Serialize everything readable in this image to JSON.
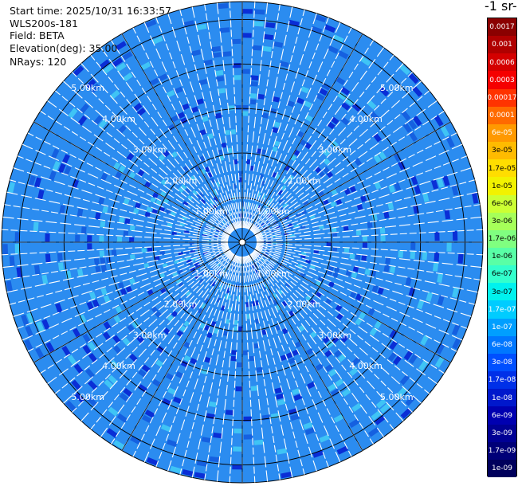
{
  "info": {
    "start_time": "Start time: 2025/10/31 16:33:57",
    "instrument": "WLS200s-181",
    "field": "Field: BETA",
    "elevation": "Elevation(deg): 35.00",
    "nrays": "NRays: 120"
  },
  "colorbar": {
    "title": "-1 sr-",
    "labels": [
      "0.0017",
      "0.001",
      "0.0006",
      "0.0003",
      "0.00017",
      "0.0001",
      "6e-05",
      "3e-05",
      "1.7e-05",
      "1e-05",
      "6e-06",
      "3e-06",
      "1.7e-06",
      "1e-06",
      "6e-07",
      "3e-07",
      "1.7e-07",
      "1e-07",
      "6e-08",
      "3e-08",
      "1.7e-08",
      "1e-08",
      "6e-09",
      "3e-09",
      "1.7e-09",
      "1e-09"
    ],
    "colors": [
      "#8b0000",
      "#b00000",
      "#d40000",
      "#f50000",
      "#ff3300",
      "#ff6a00",
      "#ff9900",
      "#ffbb00",
      "#ffdd00",
      "#f2f200",
      "#ccff33",
      "#a6ff59",
      "#80ff80",
      "#59ffa6",
      "#33ffcc",
      "#00f2ee",
      "#00ccff",
      "#009fff",
      "#0077ff",
      "#004fff",
      "#0030e8",
      "#0018cc",
      "#0000b0",
      "#000094",
      "#000078",
      "#00005c"
    ]
  },
  "chart_data": {
    "type": "heatmap",
    "subtype": "polar-ppi",
    "nrays": 120,
    "elevation_deg": 35.0,
    "range_rings_km": [
      1,
      2,
      3,
      4,
      5
    ],
    "ring_labels": [
      "1.00km",
      "2.00km",
      "3.00km",
      "4.00km",
      "5.00km"
    ],
    "value_scale": "log",
    "dominant_range": [
      3e-08,
      1.7e-07
    ],
    "background_value": 6e-08,
    "colors": {
      "background_field": "#2b8cf0",
      "low_blue": "#1560e0",
      "dark_blue": "#0a2ed6",
      "light_cyan": "#3fc4f5",
      "ring_color": "#000000",
      "gap_color": "#ffffff"
    }
  }
}
